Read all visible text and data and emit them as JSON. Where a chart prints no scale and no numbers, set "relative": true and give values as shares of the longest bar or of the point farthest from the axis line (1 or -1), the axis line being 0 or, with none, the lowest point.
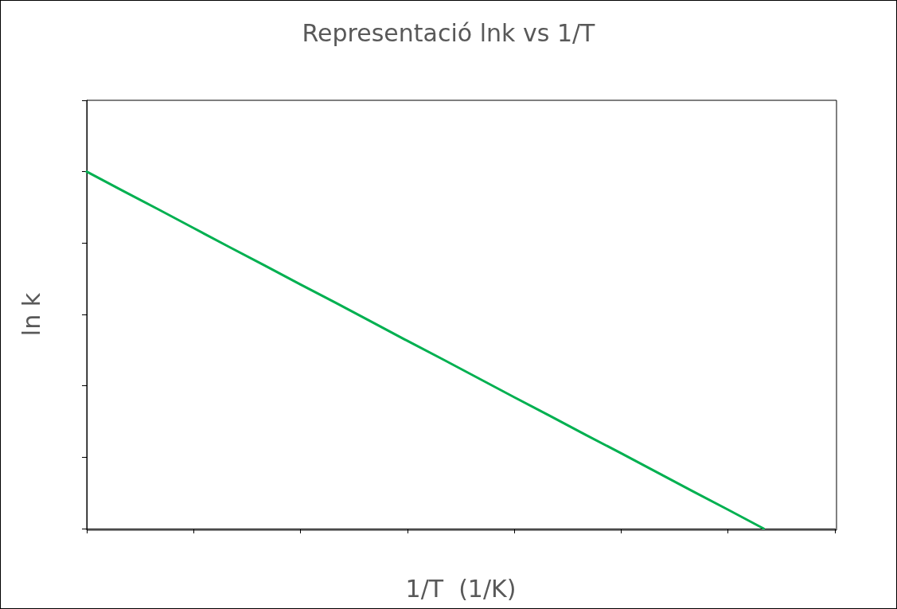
{
  "chart_data": {
    "type": "line",
    "title": "Representació lnk vs 1/T",
    "xlabel": "1/T  (1/K)",
    "ylabel": "ln k",
    "relative": true,
    "categories": [
      null,
      null,
      null,
      null,
      null,
      null,
      null,
      null,
      null,
      null,
      null,
      null,
      null,
      null,
      null,
      null,
      null,
      null,
      null,
      null,
      null,
      null
    ],
    "series": [
      {
        "color": "#00b050",
        "values": [
          1,
          0.947,
          0.895,
          0.842,
          0.789,
          0.737,
          0.684,
          0.632,
          0.579,
          0.526,
          0.474,
          0.421,
          0.368,
          0.316,
          0.263,
          0.211,
          0.158,
          0.105,
          0.053,
          0,
          null,
          null
        ]
      }
    ],
    "marker": "none",
    "line_style": "solid"
  }
}
